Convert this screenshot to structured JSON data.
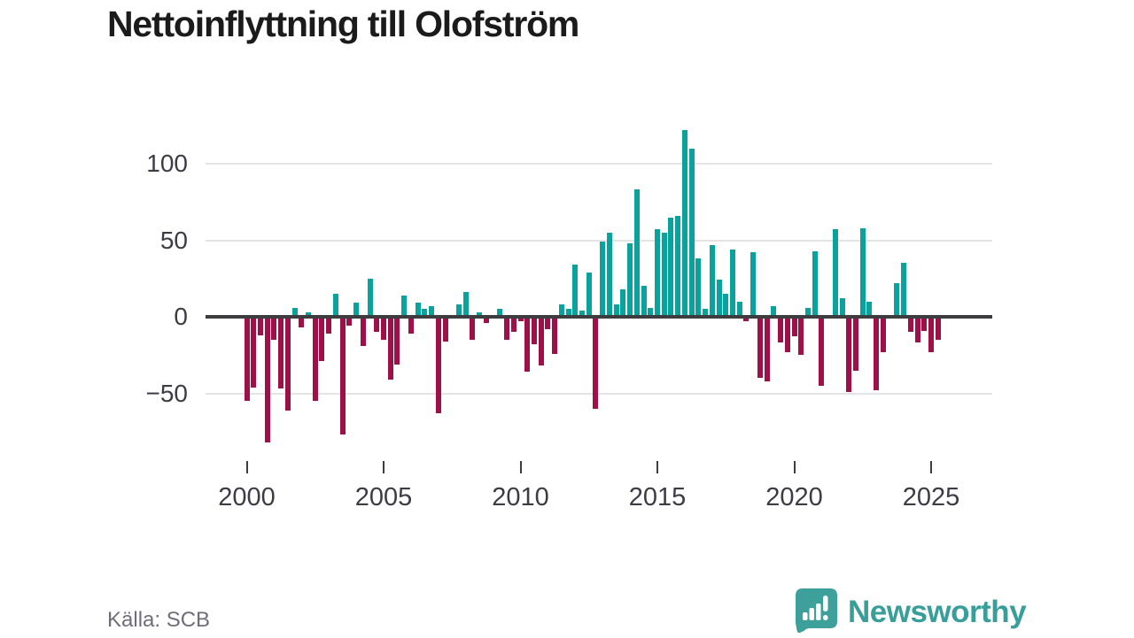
{
  "page": {
    "title": "Nettoinflyttning till Olofström"
  },
  "chart_data": {
    "type": "bar",
    "title": "Nettoinflyttning till Olofström",
    "frequency": "quarterly",
    "start_period": "2000Q1",
    "values": [
      -55,
      -46,
      -12,
      -82,
      -15,
      -47,
      -61,
      6,
      -7,
      3,
      -55,
      -29,
      -11,
      15,
      -77,
      -6,
      9,
      -19,
      25,
      -10,
      -15,
      -41,
      -31,
      14,
      -11,
      9,
      5,
      7,
      -63,
      -16,
      0,
      8,
      16,
      -15,
      3,
      -4,
      0,
      5,
      -15,
      -10,
      -3,
      -36,
      -18,
      -32,
      -8,
      -24,
      8,
      5,
      34,
      4,
      29,
      -60,
      49,
      55,
      8,
      18,
      48,
      83,
      20,
      6,
      57,
      55,
      65,
      66,
      122,
      110,
      38,
      5,
      47,
      24,
      15,
      44,
      10,
      -3,
      42,
      -40,
      -42,
      7,
      -17,
      -23,
      -13,
      -25,
      6,
      43,
      -45,
      0,
      57,
      12,
      -49,
      -35,
      58,
      10,
      -48,
      -23,
      0,
      22,
      35,
      -10,
      -17,
      -9,
      -23,
      -15
    ],
    "xticks": [
      {
        "label": "2000",
        "index": 0
      },
      {
        "label": "2005",
        "index": 20
      },
      {
        "label": "2010",
        "index": 40
      },
      {
        "label": "2015",
        "index": 60
      },
      {
        "label": "2020",
        "index": 80
      },
      {
        "label": "2025",
        "index": 100
      }
    ],
    "yticks": [
      {
        "label": "100",
        "value": 100
      },
      {
        "label": "50",
        "value": 50
      },
      {
        "label": "0",
        "value": 0
      },
      {
        "label": "−50",
        "value": -50
      }
    ],
    "ylim": [
      -90,
      130
    ],
    "grid": "horizontal",
    "legend": "none",
    "colors": {
      "positive": "#0aa29c",
      "negative": "#9e1048"
    }
  },
  "footer": {
    "source": "Källa: SCB",
    "brand": "Newsworthy"
  }
}
